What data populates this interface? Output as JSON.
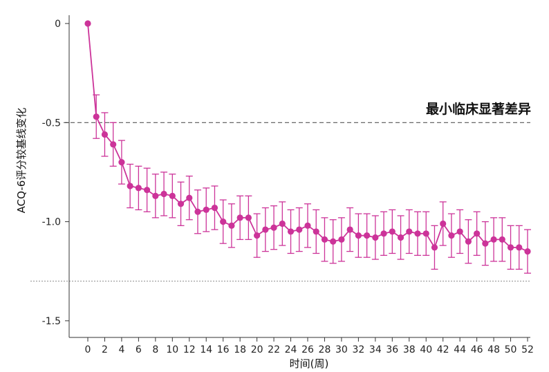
{
  "chart_data": {
    "type": "line",
    "xlabel": "时间(周)",
    "ylabel": "ACQ-6评分较基线变化",
    "xlim": [
      0,
      52
    ],
    "ylim": [
      -1.5,
      0
    ],
    "x_ticks": [
      0,
      2,
      4,
      6,
      8,
      10,
      12,
      14,
      16,
      18,
      20,
      22,
      24,
      26,
      28,
      30,
      32,
      34,
      36,
      38,
      40,
      42,
      44,
      46,
      48,
      50,
      52
    ],
    "y_ticks": [
      0,
      -0.5,
      -1.0,
      -1.5
    ],
    "y_tick_labels": [
      "0",
      "-0.5",
      "-1.0",
      "-1.5"
    ],
    "grid": false,
    "reference_lines": [
      {
        "y": -0.5,
        "label": "最小临床显著差异",
        "style": "dashed"
      },
      {
        "y": -1.3,
        "label": "",
        "style": "dotted"
      }
    ],
    "series": [
      {
        "color": "#cc3399",
        "x": [
          0,
          1,
          2,
          3,
          4,
          5,
          6,
          7,
          8,
          9,
          10,
          11,
          12,
          13,
          14,
          15,
          16,
          17,
          18,
          19,
          20,
          21,
          22,
          23,
          24,
          25,
          26,
          27,
          28,
          29,
          30,
          31,
          32,
          33,
          34,
          35,
          36,
          37,
          38,
          39,
          40,
          41,
          42,
          43,
          44,
          45,
          46,
          47,
          48,
          49,
          50,
          51,
          52
        ],
        "y": [
          0,
          -0.47,
          -0.56,
          -0.61,
          -0.7,
          -0.82,
          -0.83,
          -0.84,
          -0.87,
          -0.86,
          -0.87,
          -0.91,
          -0.88,
          -0.95,
          -0.94,
          -0.93,
          -1.0,
          -1.02,
          -0.98,
          -0.98,
          -1.07,
          -1.04,
          -1.03,
          -1.01,
          -1.05,
          -1.04,
          -1.02,
          -1.05,
          -1.09,
          -1.1,
          -1.09,
          -1.04,
          -1.07,
          -1.07,
          -1.08,
          -1.06,
          -1.05,
          -1.08,
          -1.05,
          -1.06,
          -1.06,
          -1.13,
          -1.01,
          -1.07,
          -1.05,
          -1.1,
          -1.06,
          -1.11,
          -1.09,
          -1.09,
          -1.13,
          -1.13,
          -1.15
        ],
        "error": [
          0,
          0.11,
          0.11,
          0.11,
          0.11,
          0.11,
          0.11,
          0.11,
          0.11,
          0.11,
          0.11,
          0.11,
          0.11,
          0.11,
          0.11,
          0.11,
          0.11,
          0.11,
          0.11,
          0.11,
          0.11,
          0.11,
          0.11,
          0.11,
          0.11,
          0.11,
          0.11,
          0.11,
          0.11,
          0.11,
          0.11,
          0.11,
          0.11,
          0.11,
          0.11,
          0.11,
          0.11,
          0.11,
          0.11,
          0.11,
          0.11,
          0.11,
          0.11,
          0.11,
          0.11,
          0.11,
          0.11,
          0.11,
          0.11,
          0.11,
          0.11,
          0.11,
          0.11
        ]
      }
    ]
  }
}
